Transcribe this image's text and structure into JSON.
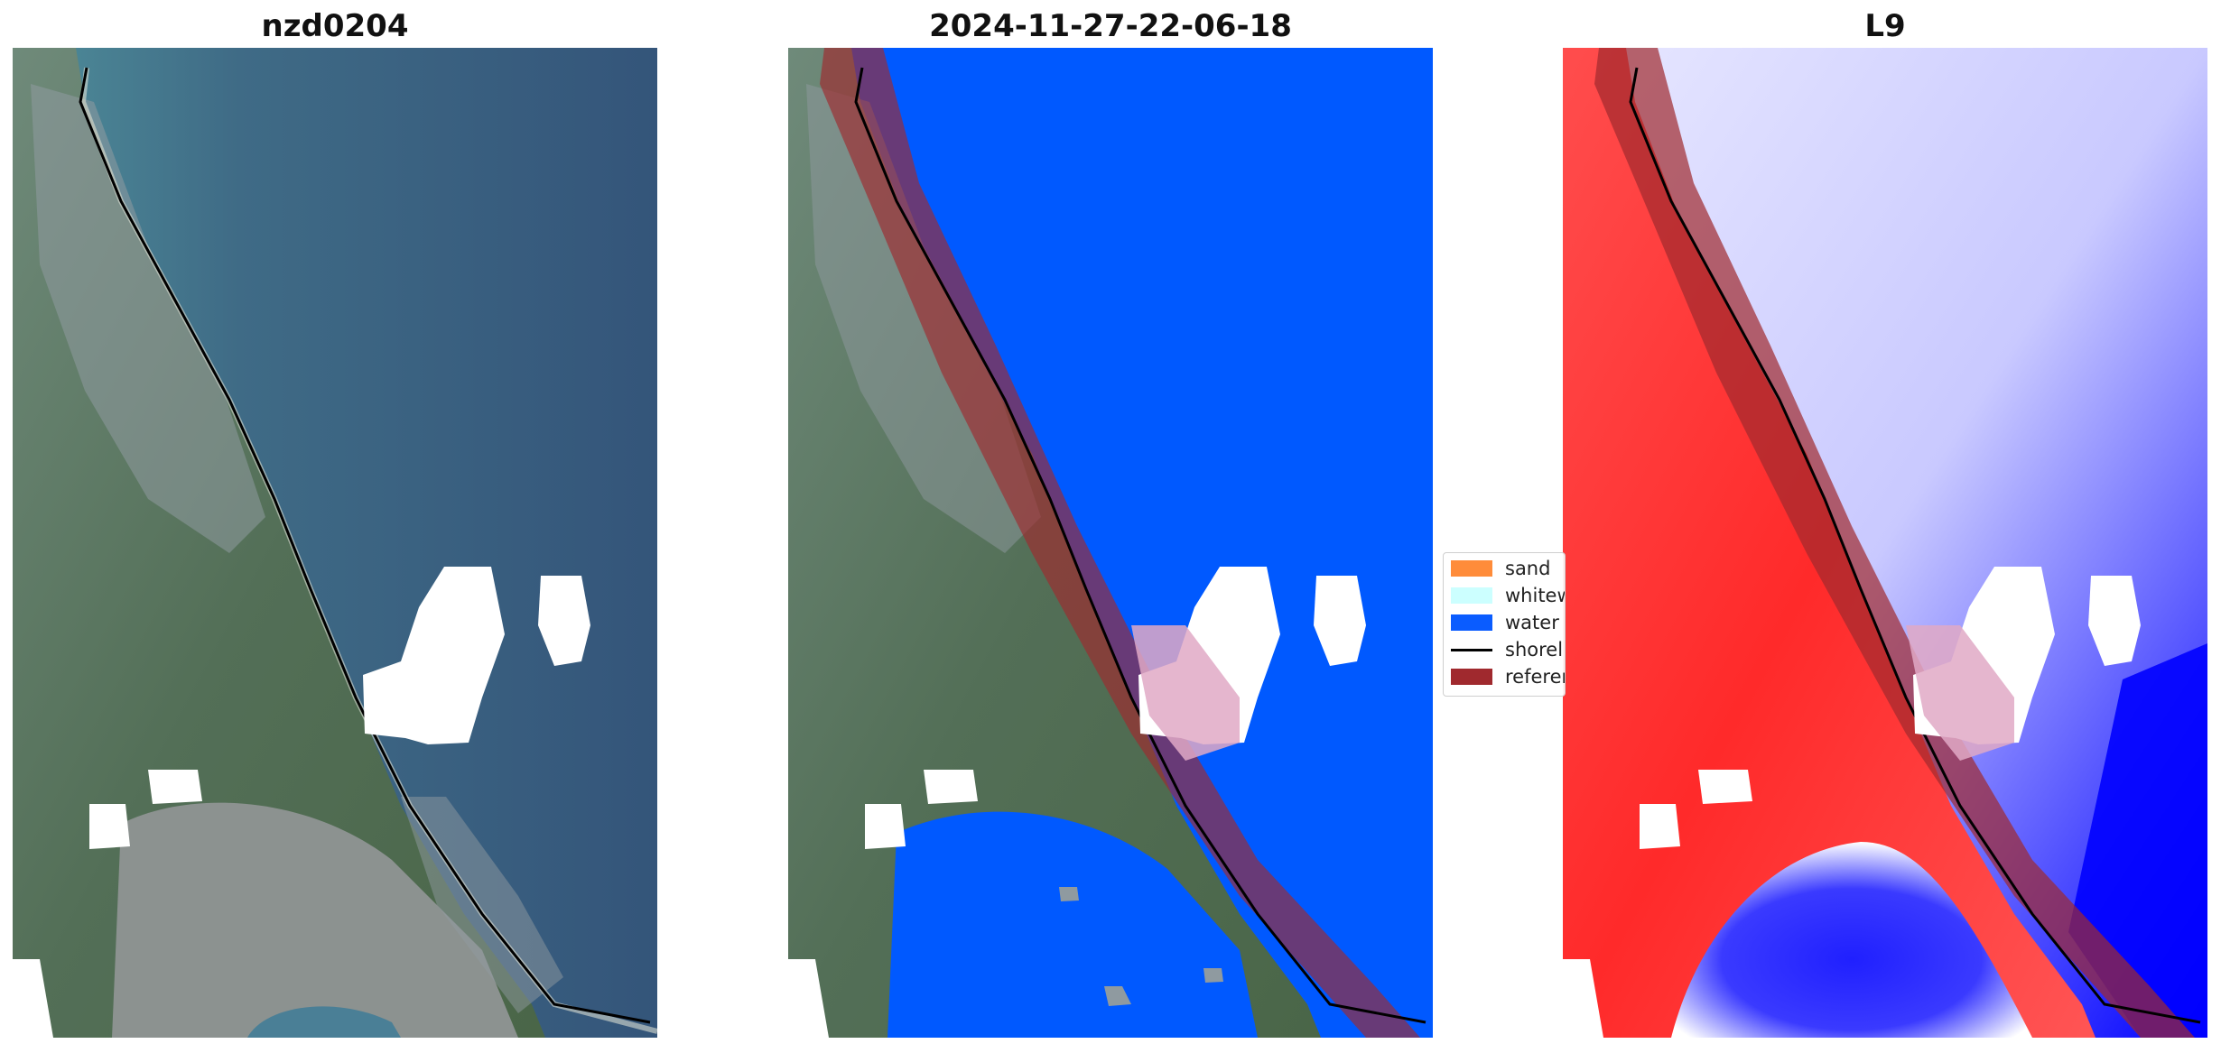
{
  "panels": [
    {
      "title": "nzd0204"
    },
    {
      "title": "2024-11-27-22-06-18"
    },
    {
      "title": "L9"
    }
  ],
  "legend": {
    "items": [
      {
        "label": "sand",
        "color": "#ff8c3a",
        "kind": "patch"
      },
      {
        "label": "whitew",
        "color": "#ccffff",
        "kind": "patch"
      },
      {
        "label": "water",
        "color": "#0a5cff",
        "kind": "patch"
      },
      {
        "label": "shorel",
        "color": "#000000",
        "kind": "line"
      },
      {
        "label": "referer",
        "color": "#a0292e",
        "kind": "patch"
      }
    ]
  },
  "colors": {
    "water_class": "#0059ff",
    "reference_buffer": "#a0292e",
    "shoreline": "#000000",
    "index_positive": "#ff1a1a",
    "index_negative": "#1a1aff"
  }
}
